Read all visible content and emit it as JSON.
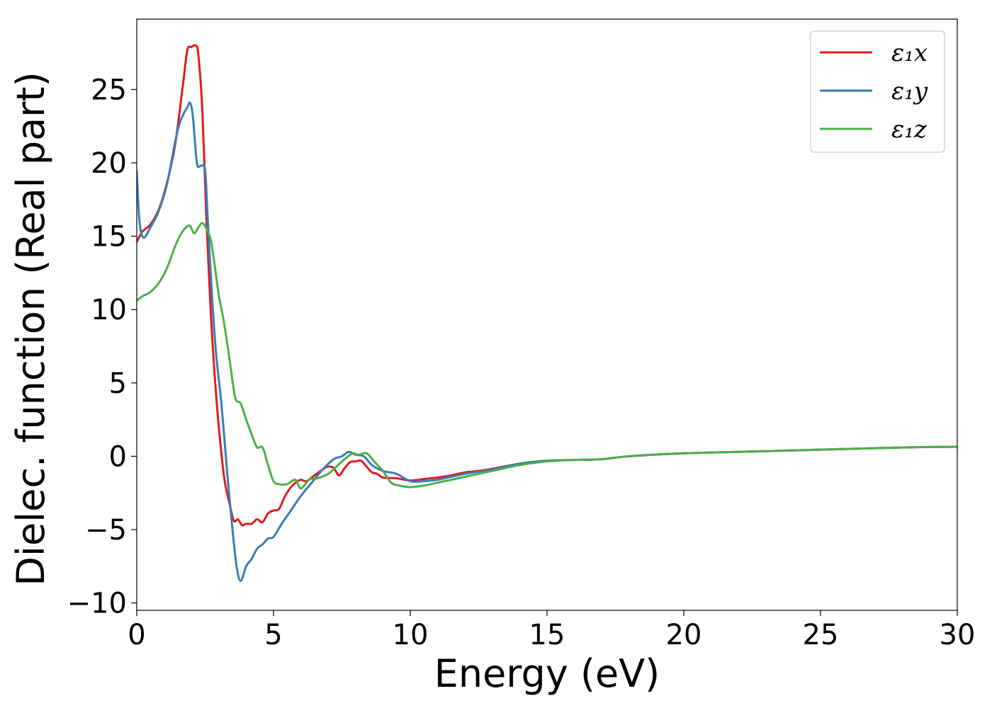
{
  "chart_data": {
    "type": "line",
    "title": "",
    "xlabel": "Energy (eV)",
    "ylabel": "Dielec. function (Real part)",
    "xlim": [
      0,
      30
    ],
    "ylim": [
      -10.5,
      29.8
    ],
    "xticks": [
      0,
      5,
      10,
      15,
      20,
      25,
      30
    ],
    "yticks": [
      -10,
      -5,
      0,
      5,
      10,
      15,
      20,
      25
    ],
    "xtick_labels": [
      "0",
      "5",
      "10",
      "15",
      "20",
      "25",
      "30"
    ],
    "ytick_labels": [
      "−10",
      "−5",
      "0",
      "5",
      "10",
      "15",
      "20",
      "25"
    ],
    "grid": false,
    "legend_position": "top-right",
    "series": [
      {
        "name": "ε₁x",
        "color": "#e41a1c",
        "x": [
          0,
          0.2,
          0.5,
          0.8,
          1.1,
          1.4,
          1.7,
          1.85,
          2.0,
          2.15,
          2.25,
          2.4,
          2.55,
          2.7,
          2.85,
          3.0,
          3.2,
          3.4,
          3.55,
          3.7,
          3.85,
          4.0,
          4.2,
          4.4,
          4.6,
          4.8,
          5.0,
          5.2,
          5.4,
          5.6,
          5.8,
          6.0,
          6.2,
          6.5,
          6.8,
          7.0,
          7.2,
          7.4,
          7.6,
          7.8,
          8.0,
          8.2,
          8.4,
          8.6,
          8.8,
          9.0,
          9.5,
          10.0,
          10.5,
          11.0,
          11.5,
          12.0,
          12.5,
          13.0,
          14.0,
          15.0,
          16.0,
          17.0,
          18.0,
          20.0,
          22.0,
          25.0,
          28.0,
          30.0
        ],
        "y": [
          14.6,
          15.3,
          15.8,
          16.8,
          18.6,
          21.2,
          25.5,
          27.7,
          27.9,
          28.0,
          27.4,
          23.5,
          16.0,
          10.0,
          5.5,
          2.0,
          -1.5,
          -3.3,
          -4.4,
          -4.3,
          -4.7,
          -4.6,
          -4.6,
          -4.3,
          -4.5,
          -3.9,
          -3.7,
          -3.6,
          -2.8,
          -2.2,
          -1.8,
          -1.6,
          -1.7,
          -1.3,
          -0.9,
          -0.7,
          -0.8,
          -1.3,
          -0.8,
          -0.4,
          -0.35,
          -0.3,
          -0.7,
          -1.1,
          -1.2,
          -1.45,
          -1.5,
          -1.65,
          -1.55,
          -1.45,
          -1.3,
          -1.1,
          -1.0,
          -0.85,
          -0.5,
          -0.3,
          -0.25,
          -0.2,
          0.0,
          0.2,
          0.3,
          0.45,
          0.6,
          0.65
        ]
      },
      {
        "name": "ε₁y",
        "color": "#377eb8",
        "x": [
          0,
          0.1,
          0.25,
          0.5,
          0.8,
          1.1,
          1.4,
          1.55,
          1.7,
          1.85,
          1.95,
          2.05,
          2.2,
          2.35,
          2.5,
          2.6,
          2.75,
          2.9,
          3.1,
          3.3,
          3.5,
          3.65,
          3.8,
          4.0,
          4.2,
          4.4,
          4.6,
          4.8,
          5.0,
          5.3,
          5.6,
          6.0,
          6.4,
          6.8,
          7.2,
          7.5,
          7.75,
          8.0,
          8.3,
          8.6,
          9.0,
          9.5,
          10.0,
          10.5,
          11.0,
          11.5,
          12.0,
          13.0,
          14.0,
          15.0,
          16.0,
          17.0,
          18.0,
          20.0,
          22.0,
          25.0,
          28.0,
          30.0
        ],
        "y": [
          19.5,
          16.0,
          14.9,
          15.6,
          16.7,
          18.5,
          21.4,
          22.6,
          23.3,
          23.8,
          24.1,
          23.2,
          20.0,
          19.8,
          19.5,
          16.0,
          11.0,
          7.0,
          3.5,
          -1.0,
          -5.0,
          -7.5,
          -8.5,
          -7.5,
          -7.0,
          -6.3,
          -6.0,
          -5.6,
          -5.5,
          -4.6,
          -3.8,
          -2.7,
          -1.8,
          -0.9,
          -0.2,
          0.0,
          0.3,
          0.1,
          0.0,
          -0.6,
          -1.0,
          -1.2,
          -1.7,
          -1.7,
          -1.6,
          -1.4,
          -1.2,
          -0.9,
          -0.5,
          -0.3,
          -0.25,
          -0.2,
          0.0,
          0.2,
          0.3,
          0.45,
          0.6,
          0.65
        ]
      },
      {
        "name": "ε₁z",
        "color": "#4daf4a",
        "x": [
          0,
          0.2,
          0.5,
          0.8,
          1.1,
          1.4,
          1.6,
          1.8,
          1.95,
          2.1,
          2.25,
          2.4,
          2.55,
          2.7,
          2.85,
          3.0,
          3.2,
          3.4,
          3.6,
          3.8,
          4.0,
          4.2,
          4.4,
          4.6,
          4.8,
          5.0,
          5.2,
          5.5,
          5.8,
          6.0,
          6.3,
          6.6,
          7.0,
          7.3,
          7.6,
          7.9,
          8.1,
          8.4,
          8.7,
          9.0,
          9.3,
          9.6,
          10.0,
          10.5,
          11.0,
          11.5,
          12.0,
          13.0,
          14.0,
          15.0,
          16.0,
          17.0,
          18.0,
          20.0,
          22.0,
          25.0,
          28.0,
          30.0
        ],
        "y": [
          10.6,
          10.9,
          11.2,
          11.8,
          12.8,
          14.3,
          15.1,
          15.6,
          15.7,
          15.2,
          15.6,
          15.9,
          15.5,
          14.8,
          13.0,
          11.0,
          9.0,
          6.5,
          4.0,
          3.6,
          2.5,
          1.5,
          0.6,
          0.6,
          -0.6,
          -1.7,
          -1.9,
          -1.9,
          -1.6,
          -2.2,
          -1.6,
          -1.5,
          -1.2,
          -0.7,
          -0.2,
          0.2,
          0.1,
          0.2,
          -0.4,
          -1.0,
          -1.8,
          -2.0,
          -2.1,
          -2.0,
          -1.8,
          -1.6,
          -1.4,
          -1.0,
          -0.6,
          -0.35,
          -0.25,
          -0.2,
          0.0,
          0.2,
          0.3,
          0.45,
          0.6,
          0.65
        ]
      }
    ]
  }
}
